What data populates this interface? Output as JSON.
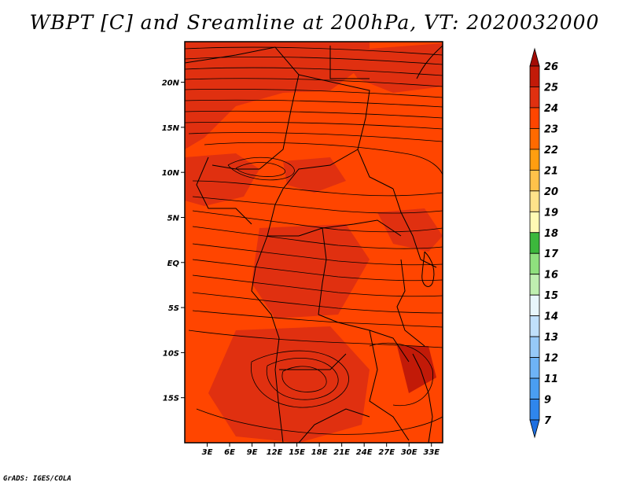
{
  "title": "WBPT [C] and Sreamline at 200hPa, VT: 2020032000",
  "credit": "GrADS: IGES/COLA",
  "map": {
    "lon_range": [
      0,
      34.5
    ],
    "lat_range": [
      -20,
      24.5
    ],
    "lon_ticks": [
      "3E",
      "6E",
      "9E",
      "12E",
      "15E",
      "18E",
      "21E",
      "24E",
      "27E",
      "30E",
      "33E"
    ],
    "lat_ticks": [
      "20N",
      "15N",
      "10N",
      "5N",
      "EQ",
      "5S",
      "10S",
      "15S"
    ]
  },
  "colorbar": {
    "labels": [
      "7",
      "9",
      "11",
      "12",
      "13",
      "14",
      "15",
      "16",
      "17",
      "18",
      "19",
      "20",
      "21",
      "22",
      "23",
      "24",
      "25",
      "26"
    ],
    "colors": [
      "#1e6fe0",
      "#2f86ec",
      "#4a9ef2",
      "#6eb3f6",
      "#96c9f8",
      "#c0e0fb",
      "#e8f6fb",
      "#bfefb0",
      "#8fe07e",
      "#3cb83c",
      "#fffab4",
      "#ffe38a",
      "#ffc24a",
      "#ff9e10",
      "#ff6a00",
      "#ff4500",
      "#e03010",
      "#c21a08",
      "#a30c05"
    ]
  }
}
